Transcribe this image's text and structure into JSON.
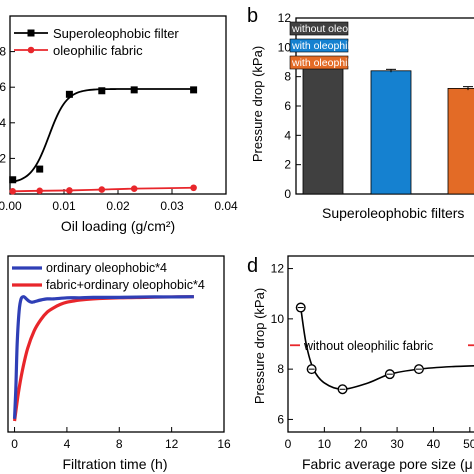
{
  "chart_data": [
    {
      "panel": "a",
      "type": "scatter",
      "xlabel": "Oil loading (g/cm²)",
      "xticks": [
        "0.00",
        "0.01",
        "0.02",
        "0.03",
        "0.04"
      ],
      "yticks": [
        "",
        "2",
        "4",
        "6",
        "8"
      ],
      "xlim": [
        0,
        0.04
      ],
      "ylim": [
        0,
        10
      ],
      "legend_position": "top-left",
      "series": [
        {
          "name": "Superoleophobic filter",
          "color": "#000000",
          "marker": "square",
          "fit": "sigmoid",
          "x": [
            0.0005,
            0.0055,
            0.011,
            0.017,
            0.023,
            0.034
          ],
          "y": [
            0.8,
            1.4,
            5.6,
            5.8,
            5.85,
            5.85
          ]
        },
        {
          "name": "oleophilic fabric",
          "color": "#e8262b",
          "marker": "circle",
          "x": [
            0.0005,
            0.0055,
            0.011,
            0.017,
            0.023,
            0.034
          ],
          "y": [
            0.15,
            0.18,
            0.2,
            0.25,
            0.3,
            0.35
          ]
        }
      ]
    },
    {
      "panel": "b",
      "letter": "b",
      "type": "bar",
      "ylabel": "Pressure drop (kPa)",
      "xlabel": "Superoleophobic filters",
      "yticks": [
        "0",
        "2",
        "4",
        "6",
        "8",
        "10",
        "12"
      ],
      "ylim": [
        0,
        12
      ],
      "legend_position": "top",
      "series": [
        {
          "name": "without oleophilic fabric",
          "color": "#404040",
          "value": 8.8,
          "error": 0.12
        },
        {
          "name": "with oleophilic fabric (not close)",
          "color": "#1581d0",
          "value": 8.4,
          "error": 0.1
        },
        {
          "name": "with oleophilic fabric (close)",
          "color": "#e36b26",
          "value": 7.2,
          "error": 0.12
        }
      ]
    },
    {
      "panel": "c",
      "type": "line",
      "xlabel": "Filtration time (h)",
      "xticks": [
        "0",
        "4",
        "8",
        "12",
        "16"
      ],
      "xlim": [
        -0.5,
        16
      ],
      "ylim": [
        1,
        9
      ],
      "legend_position": "top-left",
      "series": [
        {
          "name": "ordinary oleophobic*4",
          "color": "#2f3fb6",
          "x": [
            0,
            0.1,
            0.2,
            0.35,
            0.5,
            0.7,
            0.9,
            1.1,
            1.3,
            1.5,
            2,
            2.5,
            3,
            4,
            5,
            6,
            8,
            10,
            12,
            13.7
          ],
          "y": [
            1.6,
            3.0,
            5.0,
            6.5,
            7.05,
            7.15,
            7.05,
            6.95,
            6.9,
            6.92,
            7.0,
            7.05,
            7.05,
            7.1,
            7.1,
            7.12,
            7.12,
            7.14,
            7.14,
            7.15
          ]
        },
        {
          "name": "fabric+ordinary oleophobic*4",
          "color": "#e8262b",
          "x": [
            0,
            0.3,
            0.6,
            1.0,
            1.5,
            2.0,
            2.5,
            3.0,
            3.5,
            4.0,
            4.5,
            5.0,
            6.0,
            8.0,
            10.0,
            12.0,
            13.7
          ],
          "y": [
            1.5,
            2.8,
            3.8,
            4.8,
            5.6,
            6.1,
            6.45,
            6.65,
            6.8,
            6.9,
            6.95,
            7.0,
            7.05,
            7.1,
            7.12,
            7.14,
            7.15
          ]
        }
      ]
    },
    {
      "panel": "d",
      "letter": "d",
      "type": "scatter",
      "ylabel": "Pressure drop (kPa)",
      "xlabel": "Fabric average pore size (μ",
      "xticks": [
        "0",
        "10",
        "20",
        "30",
        "40",
        "50"
      ],
      "yticks": [
        "6",
        "8",
        "10",
        "12"
      ],
      "xlim": [
        0,
        55
      ],
      "ylim": [
        5.5,
        12.5
      ],
      "reference_line": {
        "label": "without oleophilic fabric",
        "y": 8.95,
        "color": "#e8262b"
      },
      "series": [
        {
          "name": "",
          "color": "#000000",
          "marker": "circle-open",
          "x": [
            3.5,
            6.5,
            15,
            28,
            36,
            55
          ],
          "y": [
            10.45,
            8.0,
            7.2,
            7.8,
            8.0,
            8.15
          ]
        }
      ]
    }
  ]
}
